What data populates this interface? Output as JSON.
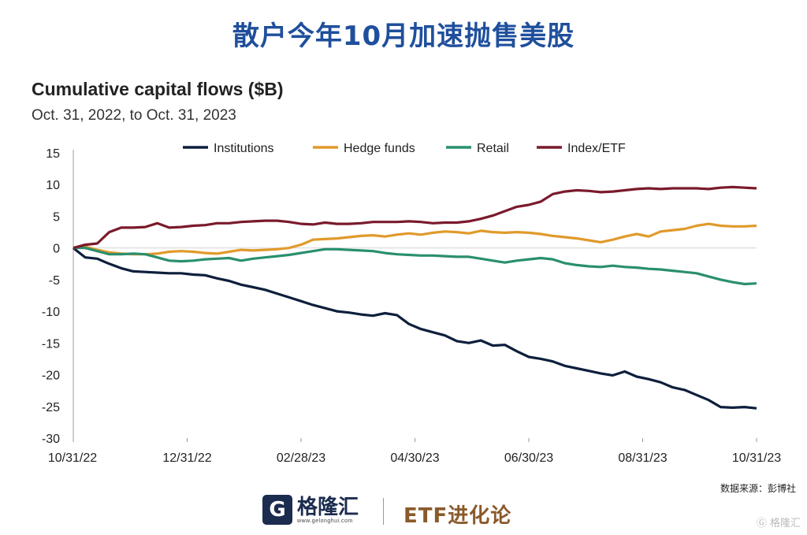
{
  "headline": "散户今年10月加速抛售美股",
  "source": "数据来源：彭博社",
  "footer": {
    "brand_name": "格隆汇",
    "brand_url": "www.gelonghui.com",
    "partner": "ETF进化论",
    "watermark": "格隆汇"
  },
  "chart_data": {
    "type": "line",
    "title": "Cumulative capital flows ($B)",
    "subtitle": "Oct. 31, 2022, to Oct. 31, 2023",
    "xlabel": "",
    "ylabel": "",
    "ylim": [
      -30,
      15
    ],
    "yticks": [
      15,
      10,
      5,
      0,
      -5,
      -10,
      -15,
      -20,
      -25,
      -30
    ],
    "xticks": [
      "10/31/22",
      "12/31/22",
      "02/28/23",
      "04/30/23",
      "06/30/23",
      "08/31/23",
      "10/31/23"
    ],
    "grid": false,
    "legend": "top",
    "series": [
      {
        "name": "Institutions",
        "color": "#0d1f3c",
        "values": [
          0,
          -1.5,
          -1.7,
          -2.5,
          -3.2,
          -3.7,
          -3.8,
          -3.9,
          -4.0,
          -4.0,
          -4.2,
          -4.3,
          -4.8,
          -5.2,
          -5.8,
          -6.2,
          -6.6,
          -7.2,
          -7.8,
          -8.4,
          -9.0,
          -9.5,
          -10.0,
          -10.2,
          -10.5,
          -10.7,
          -10.3,
          -10.6,
          -12.0,
          -12.8,
          -13.3,
          -13.8,
          -14.7,
          -15.0,
          -14.6,
          -15.4,
          -15.3,
          -16.3,
          -17.2,
          -17.5,
          -17.9,
          -18.6,
          -19.0,
          -19.4,
          -19.8,
          -20.1,
          -19.5,
          -20.3,
          -20.7,
          -21.2,
          -22.0,
          -22.4,
          -23.2,
          -24.0,
          -25.1,
          -25.2,
          -25.1,
          -25.3
        ]
      },
      {
        "name": "Hedge funds",
        "color": "#e09a2b",
        "values": [
          0,
          0.2,
          -0.3,
          -0.7,
          -0.9,
          -1.0,
          -1.0,
          -0.9,
          -0.6,
          -0.5,
          -0.6,
          -0.8,
          -0.9,
          -0.6,
          -0.3,
          -0.4,
          -0.3,
          -0.2,
          0.0,
          0.5,
          1.3,
          1.4,
          1.5,
          1.7,
          1.9,
          2.0,
          1.8,
          2.1,
          2.3,
          2.1,
          2.4,
          2.6,
          2.5,
          2.3,
          2.7,
          2.5,
          2.4,
          2.5,
          2.4,
          2.2,
          1.9,
          1.7,
          1.5,
          1.2,
          0.9,
          1.3,
          1.8,
          2.2,
          1.8,
          2.6,
          2.8,
          3.0,
          3.5,
          3.8,
          3.5,
          3.4,
          3.4,
          3.5
        ]
      },
      {
        "name": "Retail",
        "color": "#2a8f6e",
        "values": [
          0,
          0.0,
          -0.5,
          -1.0,
          -1.0,
          -0.9,
          -1.0,
          -1.5,
          -2.0,
          -2.1,
          -2.0,
          -1.8,
          -1.7,
          -1.6,
          -2.0,
          -1.7,
          -1.5,
          -1.3,
          -1.1,
          -0.8,
          -0.5,
          -0.2,
          -0.2,
          -0.3,
          -0.4,
          -0.5,
          -0.8,
          -1.0,
          -1.1,
          -1.2,
          -1.2,
          -1.3,
          -1.4,
          -1.4,
          -1.7,
          -2.0,
          -2.3,
          -2.0,
          -1.8,
          -1.6,
          -1.8,
          -2.4,
          -2.7,
          -2.9,
          -3.0,
          -2.8,
          -3.0,
          -3.1,
          -3.3,
          -3.4,
          -3.6,
          -3.8,
          -4.0,
          -4.5,
          -5.0,
          -5.4,
          -5.7,
          -5.6
        ]
      },
      {
        "name": "Index/ETF",
        "color": "#7a1a2c",
        "values": [
          0,
          0.5,
          0.7,
          2.5,
          3.2,
          3.2,
          3.3,
          3.9,
          3.2,
          3.3,
          3.5,
          3.6,
          3.9,
          3.9,
          4.1,
          4.2,
          4.3,
          4.3,
          4.1,
          3.8,
          3.7,
          4.0,
          3.8,
          3.8,
          3.9,
          4.1,
          4.1,
          4.1,
          4.2,
          4.1,
          3.9,
          4.0,
          4.0,
          4.2,
          4.6,
          5.1,
          5.8,
          6.5,
          6.8,
          7.3,
          8.5,
          8.9,
          9.1,
          9.0,
          8.8,
          8.9,
          9.1,
          9.3,
          9.4,
          9.3,
          9.4,
          9.4,
          9.4,
          9.3,
          9.5,
          9.6,
          9.5,
          9.4
        ]
      }
    ]
  }
}
